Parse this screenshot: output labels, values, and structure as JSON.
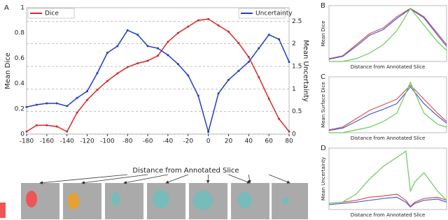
{
  "chart_data": [
    {
      "type": "line",
      "panel_label": "A",
      "xlabel": "Distance from Annotated Slice",
      "ylabel": "Mean Dice",
      "y2label": "Mean Uncertainty",
      "x": [
        -180,
        -170,
        -160,
        -150,
        -140,
        -130,
        -120,
        -110,
        -100,
        -90,
        -80,
        -70,
        -60,
        -50,
        -40,
        -30,
        -20,
        -10,
        0,
        10,
        20,
        30,
        40,
        50,
        60,
        70,
        80
      ],
      "series": [
        {
          "name": "Dice",
          "color": "#d62728",
          "values": [
            0.02,
            0.07,
            0.07,
            0.06,
            0.02,
            0.17,
            0.27,
            0.35,
            0.42,
            0.48,
            0.53,
            0.56,
            0.58,
            0.62,
            0.73,
            0.8,
            0.85,
            0.9,
            0.91,
            0.86,
            0.81,
            0.72,
            0.61,
            0.45,
            0.28,
            0.12,
            0.02
          ]
        },
        {
          "name": "Uncertainty",
          "color": "#1f3fbf",
          "axis": "y2",
          "values": [
            0.6,
            0.65,
            0.68,
            0.68,
            0.62,
            0.8,
            0.95,
            1.35,
            1.8,
            1.95,
            2.3,
            2.2,
            1.95,
            1.9,
            1.75,
            1.55,
            1.3,
            0.85,
            0.05,
            0.9,
            1.2,
            1.4,
            1.6,
            1.9,
            2.2,
            2.1,
            1.6
          ]
        }
      ],
      "xlim": [
        -180,
        80
      ],
      "xticks": [
        -180,
        -160,
        -140,
        -120,
        -100,
        -80,
        -60,
        -40,
        -20,
        0,
        20,
        40,
        60,
        80
      ],
      "ylim": [
        0,
        1.0
      ],
      "yticks": [
        0.0,
        0.2,
        0.4,
        0.6,
        0.8,
        1.0
      ],
      "y2lim": [
        0,
        2.8
      ],
      "y2ticks": [
        0.0,
        0.5,
        1.0,
        1.5,
        2.0,
        2.5
      ],
      "grid": true
    },
    {
      "type": "line",
      "panel_label": "B",
      "xlabel": "Distance from Annotated Slice",
      "ylabel": "Mean Dice",
      "x": [
        -180,
        -150,
        -120,
        -90,
        -60,
        -30,
        0,
        30,
        60,
        80
      ],
      "series": [
        {
          "color": "#d9534f",
          "values": [
            0.05,
            0.1,
            0.3,
            0.5,
            0.6,
            0.8,
            0.95,
            0.8,
            0.5,
            0.3
          ]
        },
        {
          "color": "#4a5fd0",
          "values": [
            0.04,
            0.09,
            0.27,
            0.47,
            0.57,
            0.77,
            0.94,
            0.78,
            0.47,
            0.27
          ]
        },
        {
          "color": "#66cc55",
          "values": [
            0.0,
            0.0,
            0.05,
            0.15,
            0.3,
            0.55,
            0.95,
            0.65,
            0.35,
            0.2
          ]
        }
      ],
      "xlim": [
        -180,
        80
      ],
      "ylim": [
        0,
        1
      ]
    },
    {
      "type": "line",
      "panel_label": "C",
      "xlabel": "Distance from Annotated Slice",
      "ylabel": "Mean Surface Dice",
      "x": [
        -180,
        -150,
        -120,
        -90,
        -60,
        -30,
        0,
        30,
        60,
        80
      ],
      "series": [
        {
          "color": "#d9534f",
          "values": [
            0.05,
            0.1,
            0.25,
            0.4,
            0.5,
            0.6,
            0.85,
            0.6,
            0.35,
            0.2
          ]
        },
        {
          "color": "#4a5fd0",
          "values": [
            0.04,
            0.08,
            0.2,
            0.33,
            0.42,
            0.52,
            0.82,
            0.52,
            0.3,
            0.17
          ]
        },
        {
          "color": "#66cc55",
          "values": [
            0.0,
            0.0,
            0.05,
            0.1,
            0.2,
            0.35,
            0.9,
            0.35,
            0.15,
            0.1
          ]
        }
      ],
      "xlim": [
        -180,
        80
      ],
      "ylim": [
        0,
        1
      ]
    },
    {
      "type": "line",
      "panel_label": "D",
      "xlabel": "Distance from Annotated Slice",
      "ylabel": "Mean Uncertainty",
      "x": [
        -180,
        -150,
        -120,
        -90,
        -60,
        -30,
        -10,
        0,
        10,
        30,
        60,
        80
      ],
      "series": [
        {
          "color": "#d9534f",
          "values": [
            0.1,
            0.12,
            0.15,
            0.2,
            0.22,
            0.25,
            0.15,
            0.05,
            0.12,
            0.18,
            0.2,
            0.15
          ]
        },
        {
          "color": "#4a5fd0",
          "values": [
            0.08,
            0.1,
            0.12,
            0.15,
            0.18,
            0.2,
            0.12,
            0.04,
            0.1,
            0.15,
            0.17,
            0.12
          ]
        },
        {
          "color": "#66cc55",
          "values": [
            0.1,
            0.12,
            0.25,
            0.5,
            0.7,
            0.85,
            0.95,
            0.3,
            0.45,
            0.6,
            0.3,
            0.15
          ]
        }
      ],
      "xlim": [
        -180,
        80
      ],
      "ylim": [
        0,
        1
      ]
    }
  ]
}
